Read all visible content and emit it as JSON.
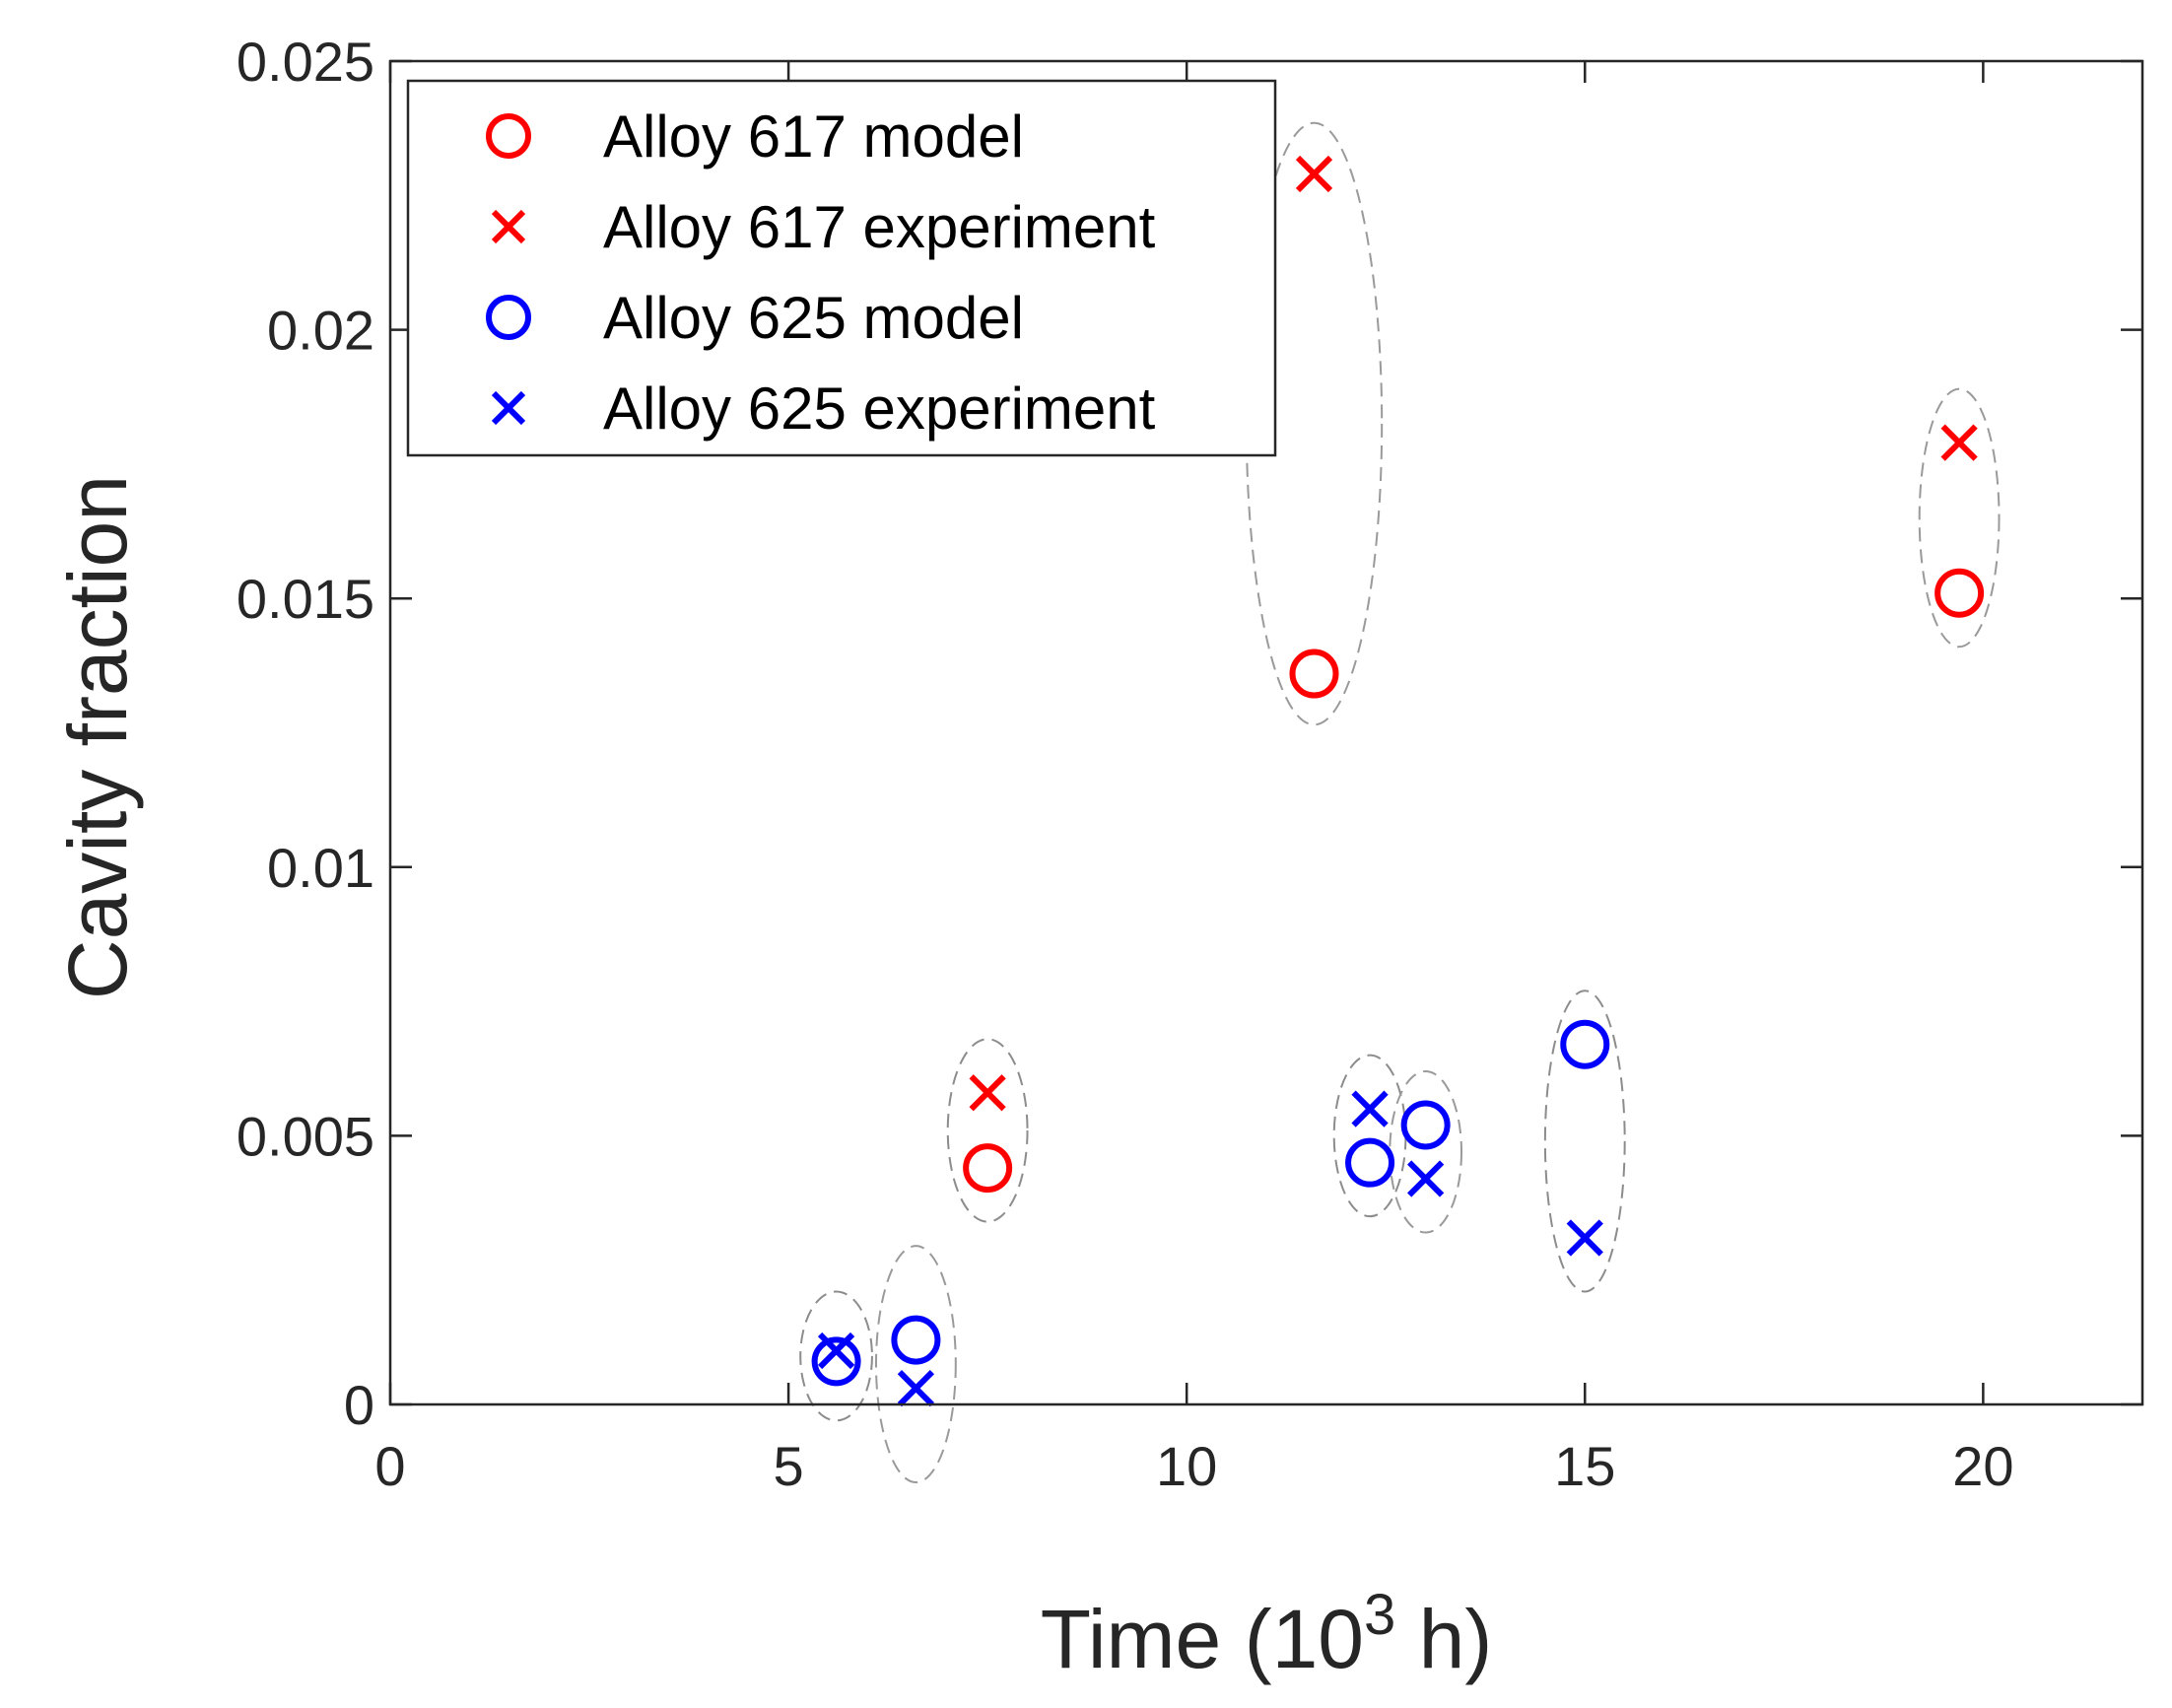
{
  "chart_data": {
    "type": "scatter",
    "xlabel": "Time (",
    "xlabel_exp_base": "10",
    "xlabel_exp": "3",
    "xlabel_unit": " h)",
    "ylabel": "Cavity fraction",
    "xlim": [
      0,
      22
    ],
    "ylim": [
      0,
      0.025
    ],
    "xticks": [
      0,
      5,
      10,
      15,
      20
    ],
    "xtick_labels": [
      "0",
      "5",
      "10",
      "15",
      "20"
    ],
    "yticks": [
      0,
      0.005,
      0.01,
      0.015,
      0.02,
      0.025
    ],
    "ytick_labels": [
      "0",
      "0.005",
      "0.01",
      "0.015",
      "0.02",
      "0.025"
    ],
    "legend_position": "top-left",
    "grid": false,
    "series": [
      {
        "name": "Alloy 617 model",
        "marker": "circle",
        "color": "#ff0000",
        "points": [
          [
            7.5,
            0.0044
          ],
          [
            11.6,
            0.0136
          ],
          [
            19.7,
            0.0151
          ]
        ]
      },
      {
        "name": "Alloy 617 experiment",
        "marker": "x",
        "color": "#ff0000",
        "points": [
          [
            7.5,
            0.0058
          ],
          [
            11.6,
            0.0229
          ],
          [
            19.7,
            0.0179
          ]
        ]
      },
      {
        "name": "Alloy 625 model",
        "marker": "circle",
        "color": "#0000ff",
        "points": [
          [
            5.6,
            0.0008
          ],
          [
            6.6,
            0.0012
          ],
          [
            12.3,
            0.0045
          ],
          [
            13.0,
            0.0052
          ],
          [
            15.0,
            0.0067
          ]
        ]
      },
      {
        "name": "Alloy 625 experiment",
        "marker": "x",
        "color": "#0000ff",
        "points": [
          [
            5.6,
            0.001
          ],
          [
            6.6,
            0.0003
          ],
          [
            12.3,
            0.0055
          ],
          [
            13.0,
            0.0042
          ],
          [
            15.0,
            0.0031
          ]
        ]
      }
    ],
    "groupings": [
      {
        "cx": 5.6,
        "cy": 0.0009,
        "rx": 0.45,
        "ry": 0.0012
      },
      {
        "cx": 6.6,
        "cy": 0.00075,
        "rx": 0.5,
        "ry": 0.0022
      },
      {
        "cx": 7.5,
        "cy": 0.0051,
        "rx": 0.5,
        "ry": 0.0017
      },
      {
        "cx": 11.6,
        "cy": 0.01825,
        "rx": 0.85,
        "ry": 0.0056
      },
      {
        "cx": 12.3,
        "cy": 0.005,
        "rx": 0.45,
        "ry": 0.0015
      },
      {
        "cx": 13.0,
        "cy": 0.0047,
        "rx": 0.45,
        "ry": 0.0015
      },
      {
        "cx": 15.0,
        "cy": 0.0049,
        "rx": 0.5,
        "ry": 0.0028
      },
      {
        "cx": 19.7,
        "cy": 0.0165,
        "rx": 0.5,
        "ry": 0.0024
      }
    ]
  }
}
